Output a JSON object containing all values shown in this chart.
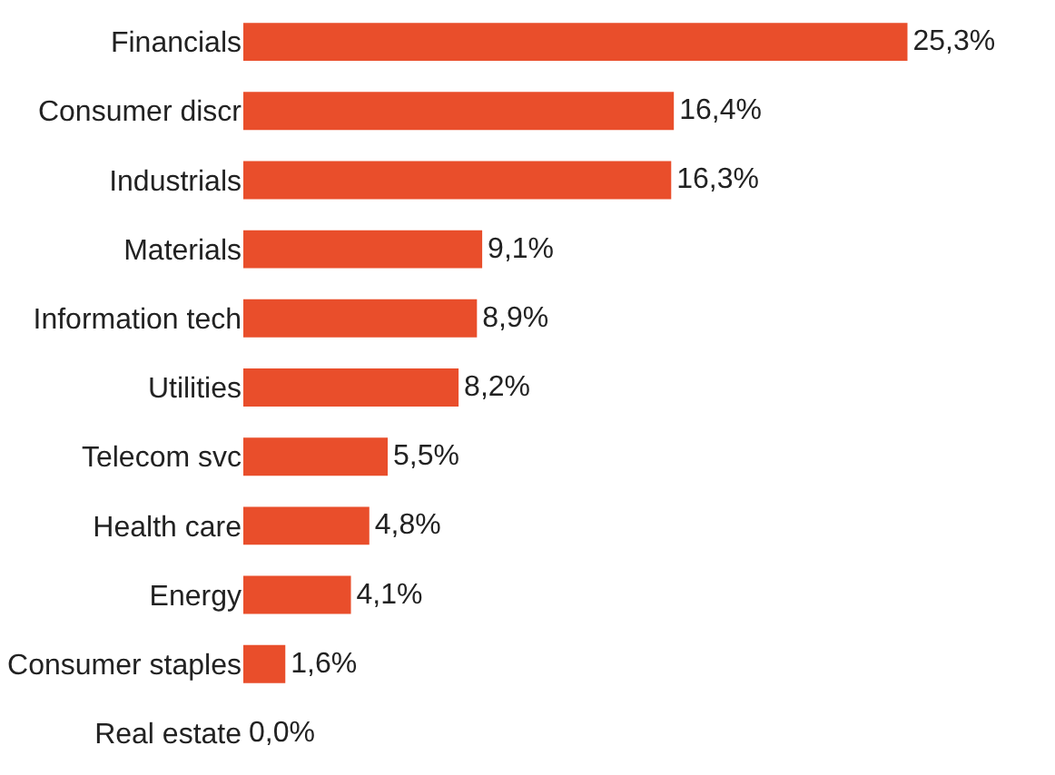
{
  "chart_data": {
    "type": "bar",
    "orientation": "horizontal",
    "tick_labels": "y",
    "categories": [
      "Financials",
      "Consumer discr",
      "Industrials",
      "Materials",
      "Information tech",
      "Utilities",
      "Telecom svc",
      "Health care",
      "Energy",
      "Consumer staples",
      "Real estate"
    ],
    "values": [
      25.3,
      16.4,
      16.3,
      9.1,
      8.9,
      8.2,
      5.5,
      4.8,
      4.1,
      1.6,
      0.0
    ],
    "value_labels": [
      "25,3%",
      "16,4%",
      "16,3%",
      "9,1%",
      "8,9%",
      "8,2%",
      "5,5%",
      "4,8%",
      "4,1%",
      "1,6%",
      "0,0%"
    ],
    "color": "#e94e2b"
  }
}
